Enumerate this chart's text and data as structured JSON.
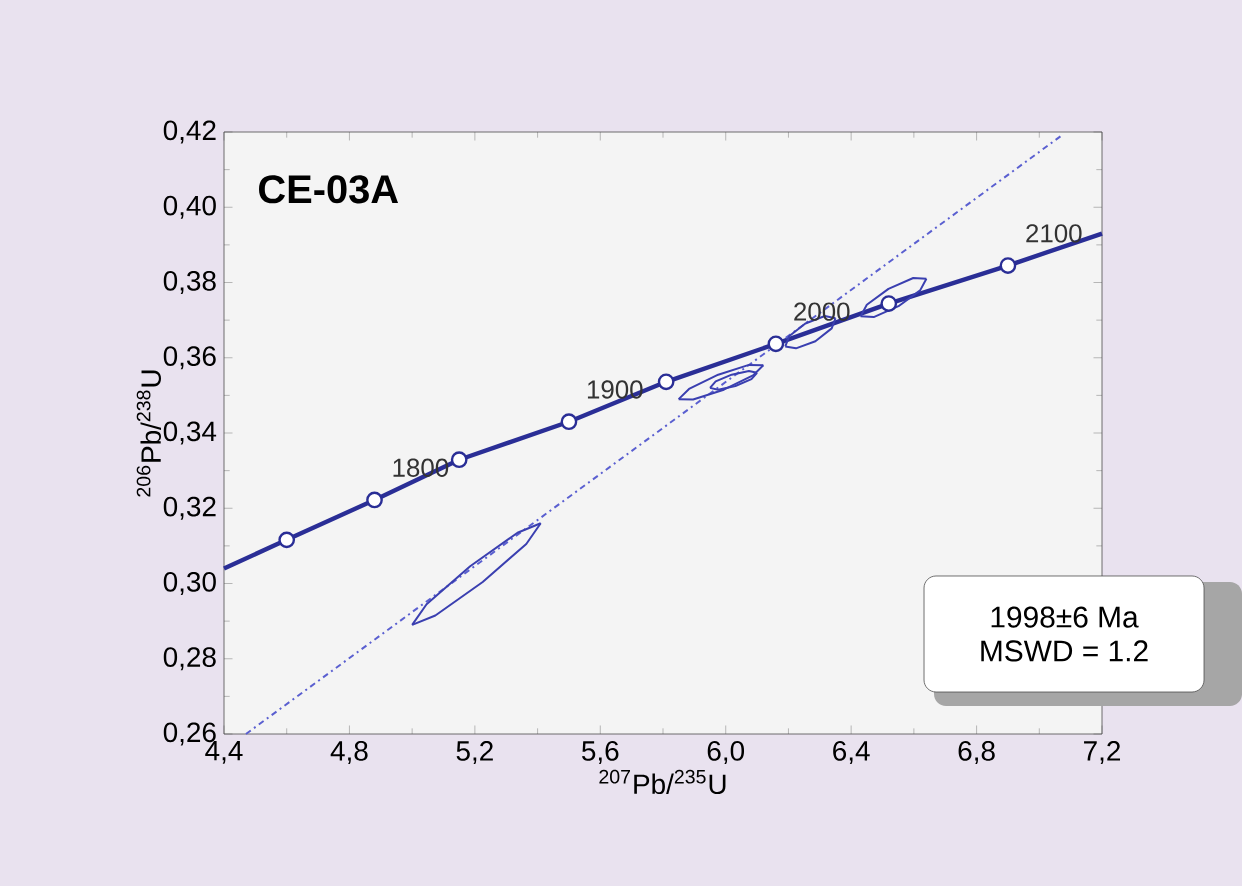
{
  "chart_data": {
    "type": "line",
    "title": "CE-03A",
    "xlabel": "$^{207}$Pb/$^{235}$U",
    "ylabel": "$^{206}$Pb/$^{238}$U",
    "xlim": [
      4.4,
      7.2
    ],
    "ylim": [
      0.26,
      0.42
    ],
    "xticks": [
      {
        "value": 4.4,
        "label": "4,4"
      },
      {
        "value": 4.8,
        "label": "4,8"
      },
      {
        "value": 5.2,
        "label": "5,2"
      },
      {
        "value": 5.6,
        "label": "5,6"
      },
      {
        "value": 6.0,
        "label": "6,0"
      },
      {
        "value": 6.4,
        "label": "6,4"
      },
      {
        "value": 6.8,
        "label": "6,8"
      },
      {
        "value": 7.2,
        "label": "7,2"
      }
    ],
    "yticks": [
      {
        "value": 0.26,
        "label": "0,26"
      },
      {
        "value": 0.28,
        "label": "0,28"
      },
      {
        "value": 0.3,
        "label": "0,30"
      },
      {
        "value": 0.32,
        "label": "0,32"
      },
      {
        "value": 0.34,
        "label": "0,34"
      },
      {
        "value": 0.36,
        "label": "0,36"
      },
      {
        "value": 0.38,
        "label": "0,38"
      },
      {
        "value": 0.4,
        "label": "0,40"
      },
      {
        "value": 0.42,
        "label": "0,42"
      }
    ],
    "grid": false,
    "series": [
      {
        "color": "#2a2e96",
        "line_style": "solid",
        "x": [
          4.4,
          4.6,
          4.88,
          5.15,
          5.5,
          5.81,
          6.16,
          6.52,
          6.9,
          7.2
        ],
        "values": [
          0.304,
          0.3116,
          0.3222,
          0.3329,
          0.343,
          0.3536,
          0.3637,
          0.3744,
          0.3845,
          0.393
        ]
      },
      {
        "type": "scatter",
        "color": "#2a2e96",
        "marker": "circle",
        "x": [
          4.6,
          4.88,
          5.15,
          5.5,
          5.81,
          6.16,
          6.52,
          6.9
        ],
        "values": [
          0.3116,
          0.3222,
          0.3329,
          0.343,
          0.3536,
          0.3637,
          0.3744,
          0.3845
        ]
      },
      {
        "color": "#5a5fd0",
        "line_style": "dashed",
        "x": [
          4.47,
          7.07
        ],
        "values": [
          0.26,
          0.419
        ]
      },
      {
        "color": "#3a3fb0",
        "line_style": "solid",
        "x": [
          5.0,
          5.046,
          5.185,
          5.336,
          5.41
        ],
        "values": [
          0.289,
          0.2945,
          0.3046,
          0.3135,
          0.316
        ]
      },
      {
        "color": "#3a3fb0",
        "line_style": "solid",
        "x": [
          5.0,
          5.074,
          5.225,
          5.364,
          5.41
        ],
        "values": [
          0.289,
          0.2915,
          0.3004,
          0.3105,
          0.316
        ]
      },
      {
        "color": "#3a3fb0",
        "line_style": "solid",
        "x": [
          5.85,
          5.883,
          5.976,
          6.074,
          6.12
        ],
        "values": [
          0.349,
          0.3517,
          0.3555,
          0.3581,
          0.358
        ]
      },
      {
        "color": "#3a3fb0",
        "line_style": "solid",
        "x": [
          5.85,
          5.896,
          5.994,
          6.087,
          6.12
        ],
        "values": [
          0.349,
          0.3489,
          0.3515,
          0.3553,
          0.358
        ]
      },
      {
        "color": "#3a3fb0",
        "line_style": "solid",
        "x": [
          5.95,
          5.968,
          6.019,
          6.074,
          6.1
        ],
        "values": [
          0.352,
          0.3537,
          0.3555,
          0.3565,
          0.356
        ]
      },
      {
        "color": "#3a3fb0",
        "line_style": "solid",
        "x": [
          5.95,
          5.976,
          6.031,
          6.082,
          6.1
        ],
        "values": [
          0.352,
          0.3515,
          0.3525,
          0.3543,
          0.356
        ]
      },
      {
        "color": "#3a3fb0",
        "line_style": "solid",
        "x": [
          6.19,
          6.202,
          6.254,
          6.316,
          6.35
        ],
        "values": [
          0.363,
          0.3657,
          0.3691,
          0.3711,
          0.3705
        ]
      },
      {
        "color": "#3a3fb0",
        "line_style": "solid",
        "x": [
          6.19,
          6.224,
          6.286,
          6.338,
          6.35
        ],
        "values": [
          0.363,
          0.3625,
          0.3644,
          0.3678,
          0.3705
        ]
      },
      {
        "color": "#3a3fb0",
        "line_style": "solid",
        "x": [
          6.43,
          6.45,
          6.519,
          6.598,
          6.64
        ],
        "values": [
          0.371,
          0.3741,
          0.3783,
          0.3812,
          0.381
        ]
      },
      {
        "color": "#3a3fb0",
        "line_style": "solid",
        "x": [
          6.43,
          6.472,
          6.551,
          6.62,
          6.64
        ],
        "values": [
          0.371,
          0.3708,
          0.3737,
          0.3779,
          0.381
        ]
      }
    ],
    "annotations": [
      {
        "text": "1800",
        "x": 4.88,
        "y": 0.3222
      },
      {
        "text": "1900",
        "x": 5.5,
        "y": 0.343
      },
      {
        "text": "2000",
        "x": 6.16,
        "y": 0.3637
      },
      {
        "text": "2100",
        "x": 6.9,
        "y": 0.3845
      },
      "1998±6  Ma",
      "MSWD = 1.2"
    ]
  }
}
